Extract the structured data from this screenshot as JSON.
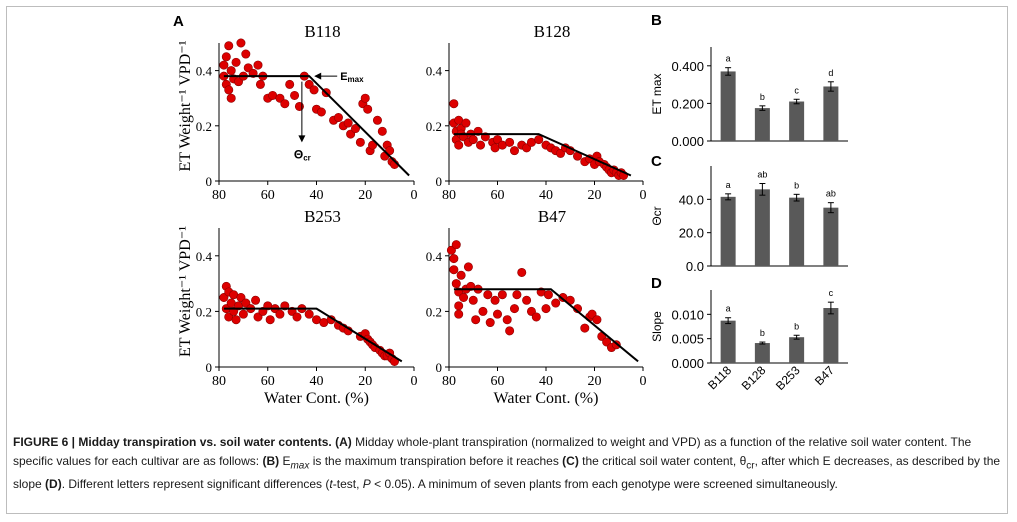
{
  "panel_letters": [
    "A",
    "B",
    "C",
    "D"
  ],
  "scatter_y_label": "ET Weight⁻¹ VPD⁻¹",
  "scatter_x_label": "Water Cont. (%)",
  "annotations": {
    "emax": "Emax",
    "theta": "Θcr"
  },
  "bar_categories": [
    "B118",
    "B128",
    "B253",
    "B47"
  ],
  "caption": {
    "p1_bold": "FIGURE 6 | Midday transpiration vs. soil water contents.",
    "p2_bold": " (A)",
    "p3": " Midday whole-plant transpiration (normalized to weight and VPD) as a function of the relative soil water content. The specific values for each cultivar are as follows: ",
    "p4_bold": "(B)",
    "p5": " E",
    "p6_sub": "max",
    "p7": " is the maximum transpiration before it reaches ",
    "p8_bold": "(C)",
    "p9": " the critical soil water content, θ",
    "p10_sub": "cr",
    "p11": ", after which E decreases, as described by the slope ",
    "p12_bold": "(D)",
    "p13": ". Different letters represent significant differences (",
    "p14_ital": "t",
    "p15": "-test, ",
    "p16_ital": "P",
    "p17": " < 0.05). A minimum of seven plants from each genotype were screened simultaneously."
  },
  "chart_data": [
    {
      "type": "scatter",
      "title": "B118",
      "xlabel": "",
      "ylabel": "ET Weight⁻¹ VPD⁻¹",
      "xlim": [
        80,
        0
      ],
      "ylim": [
        0,
        0.5
      ],
      "xticks": [
        80,
        60,
        40,
        20,
        0
      ],
      "yticks": [
        0,
        0.2,
        0.4
      ],
      "color": "#dd0000",
      "fit_line": [
        [
          78,
          0.38
        ],
        [
          43,
          0.38
        ],
        [
          2,
          0.02
        ]
      ],
      "points": [
        [
          78,
          0.38
        ],
        [
          78,
          0.42
        ],
        [
          77,
          0.35
        ],
        [
          77,
          0.45
        ],
        [
          76,
          0.49
        ],
        [
          76,
          0.33
        ],
        [
          75,
          0.4
        ],
        [
          75,
          0.3
        ],
        [
          74,
          0.37
        ],
        [
          73,
          0.43
        ],
        [
          72,
          0.36
        ],
        [
          71,
          0.5
        ],
        [
          70,
          0.38
        ],
        [
          69,
          0.46
        ],
        [
          68,
          0.41
        ],
        [
          66,
          0.39
        ],
        [
          64,
          0.42
        ],
        [
          63,
          0.35
        ],
        [
          62,
          0.38
        ],
        [
          60,
          0.3
        ],
        [
          58,
          0.31
        ],
        [
          55,
          0.3
        ],
        [
          53,
          0.28
        ],
        [
          51,
          0.35
        ],
        [
          49,
          0.31
        ],
        [
          47,
          0.27
        ],
        [
          45,
          0.38
        ],
        [
          43,
          0.35
        ],
        [
          41,
          0.33
        ],
        [
          40,
          0.26
        ],
        [
          38,
          0.25
        ],
        [
          36,
          0.32
        ],
        [
          33,
          0.22
        ],
        [
          31,
          0.23
        ],
        [
          29,
          0.2
        ],
        [
          27,
          0.21
        ],
        [
          26,
          0.17
        ],
        [
          24,
          0.19
        ],
        [
          22,
          0.14
        ],
        [
          21,
          0.28
        ],
        [
          20,
          0.3
        ],
        [
          19,
          0.26
        ],
        [
          18,
          0.11
        ],
        [
          17,
          0.13
        ],
        [
          15,
          0.22
        ],
        [
          13,
          0.18
        ],
        [
          12,
          0.09
        ],
        [
          11,
          0.13
        ],
        [
          10,
          0.11
        ],
        [
          9,
          0.07
        ],
        [
          8,
          0.06
        ]
      ]
    },
    {
      "type": "scatter",
      "title": "B128",
      "xlabel": "",
      "ylabel": "",
      "xlim": [
        80,
        0
      ],
      "ylim": [
        0,
        0.5
      ],
      "xticks": [
        80,
        60,
        40,
        20,
        0
      ],
      "yticks": [
        0,
        0.2,
        0.4
      ],
      "color": "#dd0000",
      "fit_line": [
        [
          78,
          0.17
        ],
        [
          43,
          0.17
        ],
        [
          5,
          0.02
        ]
      ],
      "points": [
        [
          78,
          0.28
        ],
        [
          78,
          0.21
        ],
        [
          77,
          0.18
        ],
        [
          77,
          0.15
        ],
        [
          76,
          0.22
        ],
        [
          76,
          0.13
        ],
        [
          75,
          0.19
        ],
        [
          75,
          0.17
        ],
        [
          74,
          0.16
        ],
        [
          73,
          0.21
        ],
        [
          72,
          0.14
        ],
        [
          71,
          0.17
        ],
        [
          70,
          0.15
        ],
        [
          68,
          0.18
        ],
        [
          67,
          0.13
        ],
        [
          65,
          0.16
        ],
        [
          62,
          0.14
        ],
        [
          61,
          0.12
        ],
        [
          60,
          0.15
        ],
        [
          58,
          0.13
        ],
        [
          55,
          0.14
        ],
        [
          53,
          0.11
        ],
        [
          50,
          0.13
        ],
        [
          48,
          0.12
        ],
        [
          46,
          0.14
        ],
        [
          43,
          0.15
        ],
        [
          40,
          0.13
        ],
        [
          38,
          0.12
        ],
        [
          36,
          0.11
        ],
        [
          34,
          0.1
        ],
        [
          32,
          0.12
        ],
        [
          30,
          0.11
        ],
        [
          27,
          0.09
        ],
        [
          24,
          0.07
        ],
        [
          22,
          0.08
        ],
        [
          20,
          0.06
        ],
        [
          19,
          0.09
        ],
        [
          18,
          0.07
        ],
        [
          16,
          0.06
        ],
        [
          15,
          0.05
        ],
        [
          14,
          0.04
        ],
        [
          13,
          0.03
        ],
        [
          12,
          0.04
        ],
        [
          11,
          0.03
        ],
        [
          10,
          0.02
        ],
        [
          9,
          0.03
        ],
        [
          8,
          0.02
        ]
      ]
    },
    {
      "type": "scatter",
      "title": "B253",
      "xlabel": "Water Cont. (%)",
      "ylabel": "ET Weight⁻¹ VPD⁻¹",
      "xlim": [
        80,
        0
      ],
      "ylim": [
        0,
        0.5
      ],
      "xticks": [
        80,
        60,
        40,
        20,
        0
      ],
      "yticks": [
        0,
        0.2,
        0.4
      ],
      "color": "#dd0000",
      "fit_line": [
        [
          78,
          0.21
        ],
        [
          40,
          0.21
        ],
        [
          5,
          0.02
        ]
      ],
      "points": [
        [
          78,
          0.25
        ],
        [
          77,
          0.29
        ],
        [
          77,
          0.21
        ],
        [
          76,
          0.18
        ],
        [
          76,
          0.27
        ],
        [
          75,
          0.23
        ],
        [
          74,
          0.2
        ],
        [
          74,
          0.26
        ],
        [
          73,
          0.17
        ],
        [
          72,
          0.22
        ],
        [
          71,
          0.25
        ],
        [
          70,
          0.19
        ],
        [
          69,
          0.23
        ],
        [
          67,
          0.21
        ],
        [
          65,
          0.24
        ],
        [
          64,
          0.18
        ],
        [
          62,
          0.2
        ],
        [
          60,
          0.22
        ],
        [
          59,
          0.17
        ],
        [
          57,
          0.21
        ],
        [
          55,
          0.19
        ],
        [
          53,
          0.22
        ],
        [
          50,
          0.2
        ],
        [
          48,
          0.18
        ],
        [
          46,
          0.21
        ],
        [
          43,
          0.19
        ],
        [
          40,
          0.17
        ],
        [
          37,
          0.16
        ],
        [
          34,
          0.17
        ],
        [
          31,
          0.15
        ],
        [
          29,
          0.14
        ],
        [
          27,
          0.13
        ],
        [
          22,
          0.11
        ],
        [
          20,
          0.12
        ],
        [
          19,
          0.1
        ],
        [
          18,
          0.09
        ],
        [
          17,
          0.08
        ],
        [
          16,
          0.07
        ],
        [
          14,
          0.06
        ],
        [
          13,
          0.05
        ],
        [
          12,
          0.04
        ],
        [
          11,
          0.04
        ],
        [
          10,
          0.05
        ],
        [
          9,
          0.03
        ],
        [
          8,
          0.02
        ]
      ]
    },
    {
      "type": "scatter",
      "title": "B47",
      "xlabel": "Water Cont. (%)",
      "ylabel": "",
      "xlim": [
        80,
        0
      ],
      "ylim": [
        0,
        0.5
      ],
      "xticks": [
        80,
        60,
        40,
        20,
        0
      ],
      "yticks": [
        0,
        0.2,
        0.4
      ],
      "color": "#dd0000",
      "fit_line": [
        [
          78,
          0.28
        ],
        [
          38,
          0.28
        ],
        [
          2,
          0.02
        ]
      ],
      "points": [
        [
          79,
          0.42
        ],
        [
          78,
          0.39
        ],
        [
          78,
          0.35
        ],
        [
          77,
          0.44
        ],
        [
          77,
          0.3
        ],
        [
          76,
          0.27
        ],
        [
          76,
          0.22
        ],
        [
          76,
          0.19
        ],
        [
          75,
          0.33
        ],
        [
          74,
          0.25
        ],
        [
          73,
          0.28
        ],
        [
          72,
          0.36
        ],
        [
          71,
          0.29
        ],
        [
          70,
          0.24
        ],
        [
          69,
          0.17
        ],
        [
          68,
          0.28
        ],
        [
          66,
          0.2
        ],
        [
          64,
          0.26
        ],
        [
          63,
          0.16
        ],
        [
          61,
          0.24
        ],
        [
          60,
          0.19
        ],
        [
          58,
          0.26
        ],
        [
          56,
          0.17
        ],
        [
          55,
          0.13
        ],
        [
          53,
          0.21
        ],
        [
          52,
          0.26
        ],
        [
          50,
          0.34
        ],
        [
          48,
          0.24
        ],
        [
          46,
          0.2
        ],
        [
          44,
          0.18
        ],
        [
          42,
          0.27
        ],
        [
          40,
          0.21
        ],
        [
          39,
          0.26
        ],
        [
          36,
          0.23
        ],
        [
          33,
          0.25
        ],
        [
          30,
          0.24
        ],
        [
          27,
          0.21
        ],
        [
          24,
          0.14
        ],
        [
          22,
          0.18
        ],
        [
          21,
          0.19
        ],
        [
          19,
          0.17
        ],
        [
          17,
          0.11
        ],
        [
          15,
          0.09
        ],
        [
          13,
          0.07
        ],
        [
          11,
          0.08
        ]
      ]
    },
    {
      "type": "bar",
      "title": "",
      "xlabel": "",
      "ylabel": "ET max",
      "categories": [
        "B118",
        "B128",
        "B253",
        "B47"
      ],
      "values": [
        0.37,
        0.175,
        0.21,
        0.29
      ],
      "errors": [
        0.02,
        0.012,
        0.012,
        0.025
      ],
      "letters": [
        "a",
        "b",
        "c",
        "d"
      ],
      "ylim": [
        0,
        0.5
      ],
      "yticks": [
        "0.000",
        "0.200",
        "0.400"
      ],
      "ytick_values": [
        0,
        0.2,
        0.4
      ],
      "color": "#595959"
    },
    {
      "type": "bar",
      "title": "",
      "xlabel": "",
      "ylabel": "Θcr",
      "categories": [
        "B118",
        "B128",
        "B253",
        "B47"
      ],
      "values": [
        41.5,
        46,
        41,
        35
      ],
      "errors": [
        1.8,
        3.5,
        2.0,
        3.0
      ],
      "letters": [
        "a",
        "ab",
        "b",
        "ab"
      ],
      "ylim": [
        0,
        60
      ],
      "yticks": [
        "0.0",
        "20.0",
        "40.0"
      ],
      "ytick_values": [
        0,
        20,
        40
      ],
      "color": "#595959"
    },
    {
      "type": "bar",
      "title": "",
      "xlabel": "",
      "ylabel": "Slope",
      "categories": [
        "B118",
        "B128",
        "B253",
        "B47"
      ],
      "values": [
        0.0087,
        0.0041,
        0.0053,
        0.0113
      ],
      "errors": [
        0.0006,
        0.0002,
        0.0004,
        0.0012
      ],
      "letters": [
        "a",
        "b",
        "b",
        "c"
      ],
      "ylim": [
        0,
        0.015
      ],
      "yticks": [
        "0.000",
        "0.005",
        "0.010"
      ],
      "ytick_values": [
        0,
        0.005,
        0.01
      ],
      "color": "#595959"
    }
  ]
}
